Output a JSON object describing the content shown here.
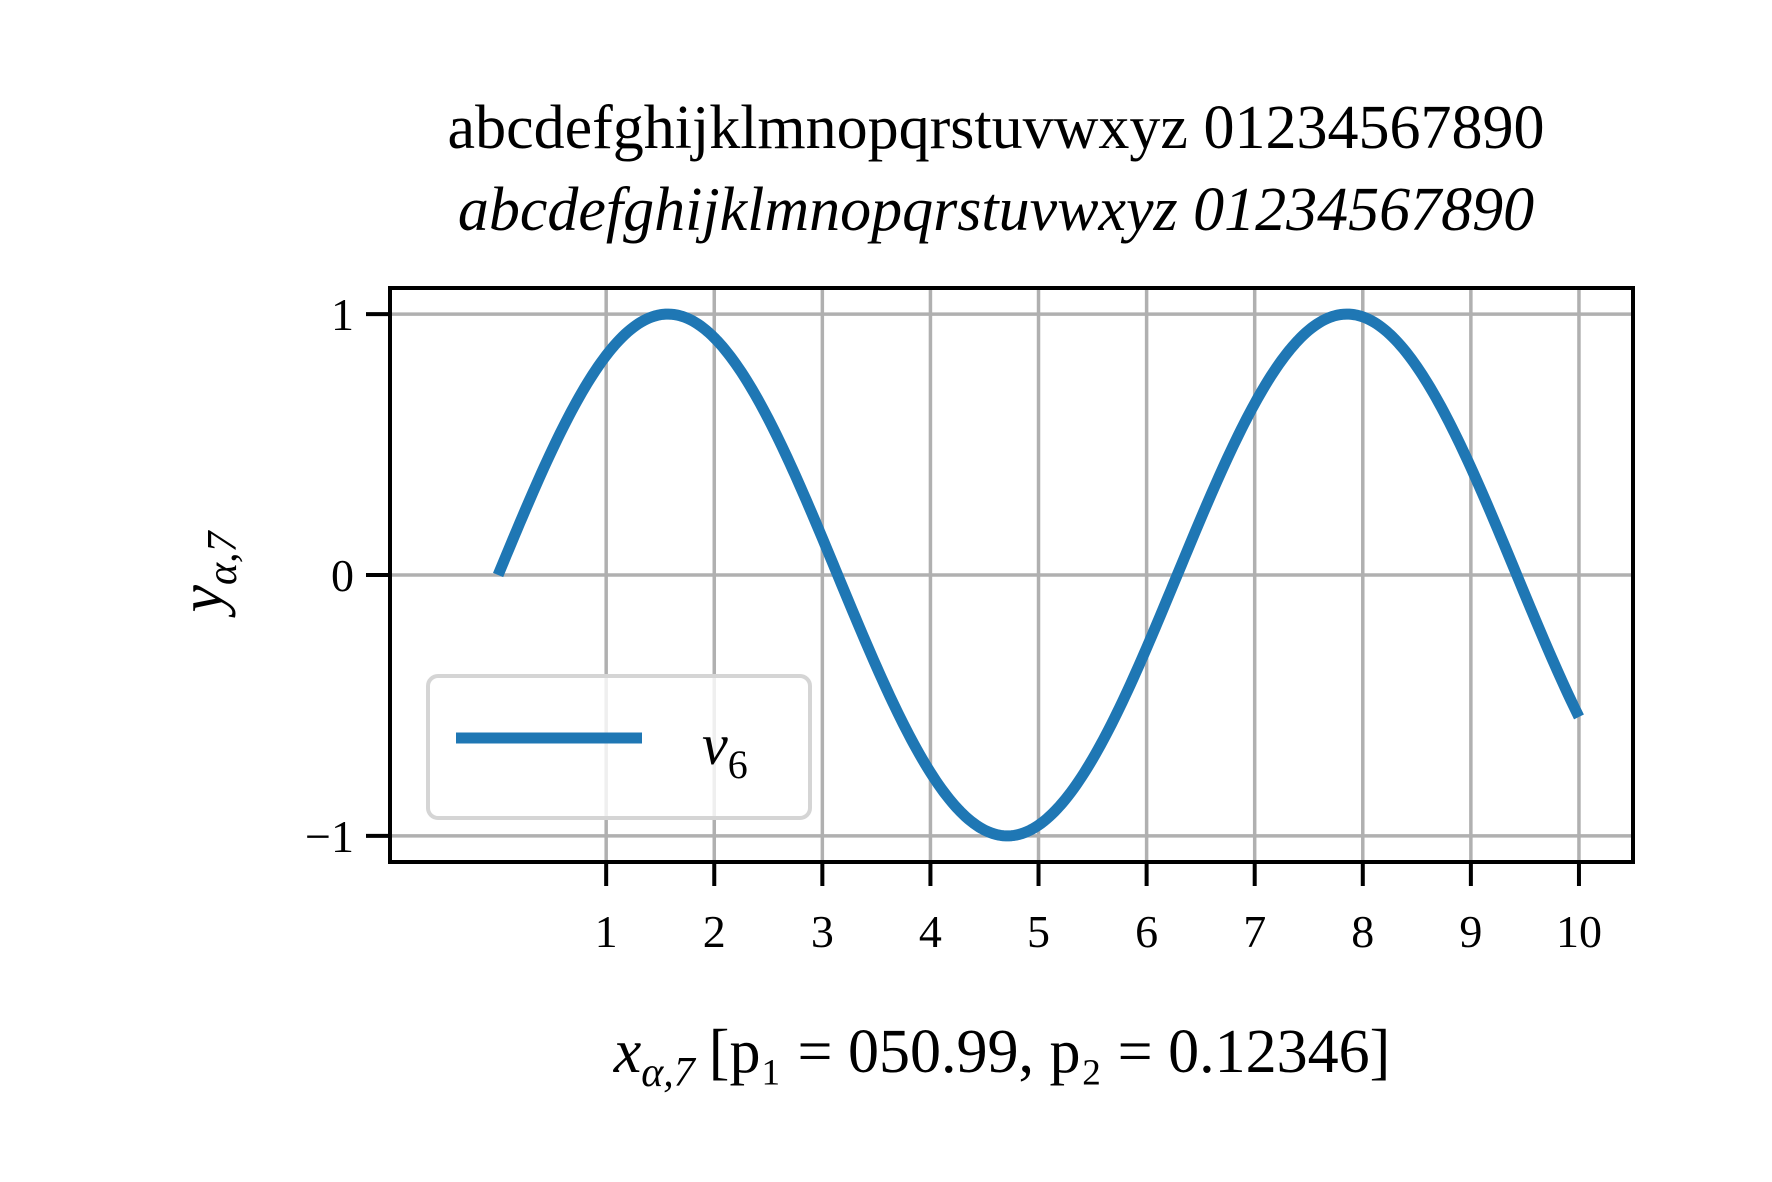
{
  "chart_data": {
    "type": "line",
    "title_lines": [
      "abcdefghijklmnopqrstuvwxyz 01234567890",
      "abcdefghijklmnopqrstuvwxyz 01234567890"
    ],
    "xlabel": {
      "var": "x",
      "sub": "α,7",
      "bracket": "[p₁ = 050.99, p₂ = 0.12346]"
    },
    "ylabel": {
      "var": "y",
      "sub": "α,7"
    },
    "xlim": [
      -1.0,
      10.5
    ],
    "ylim": [
      -1.1,
      1.1
    ],
    "x_ticks": [
      1,
      2,
      3,
      4,
      5,
      6,
      7,
      8,
      9,
      10
    ],
    "x_tick_labels": [
      "1",
      "2",
      "3",
      "4",
      "5",
      "6",
      "7",
      "8",
      "9",
      "10"
    ],
    "y_ticks": [
      -1,
      0,
      1
    ],
    "y_tick_labels": [
      "−1",
      "0",
      "1"
    ],
    "grid": true,
    "legend_position": "lower-left",
    "series": [
      {
        "name": "v₆",
        "name_var": "v",
        "name_sub": "6",
        "color": "#1f77b4",
        "function": "sin(x)",
        "x_range": [
          0,
          10
        ]
      }
    ]
  }
}
